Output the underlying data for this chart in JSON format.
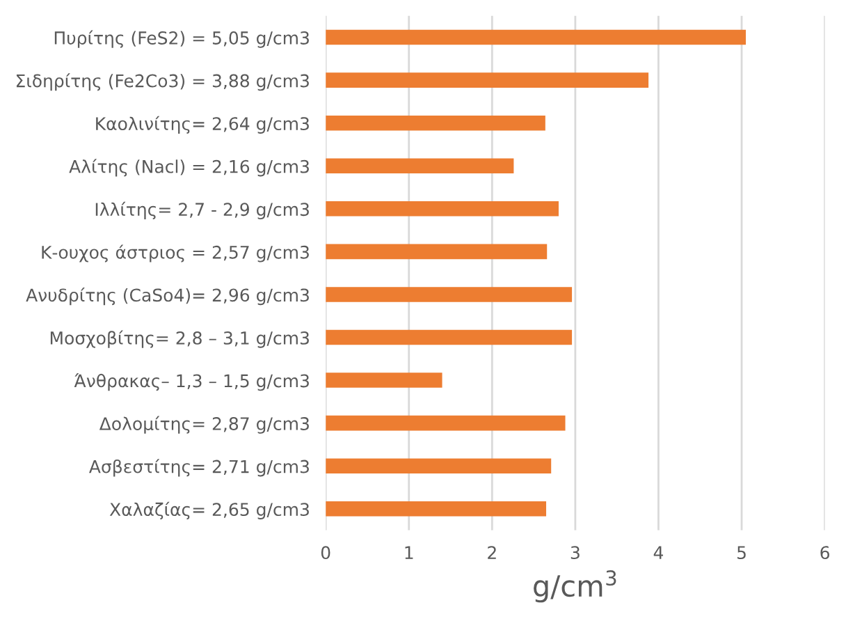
{
  "chart_data": {
    "type": "bar",
    "orientation": "horizontal",
    "xlabel": "g/cm$^{3}$",
    "categories": [
      "Πυρίτης (FeS2) = 5,05 g/cm3",
      "Σιδηρίτης (Fe2Co3) = 3,88 g/cm3",
      "Καολινίτης= 2,64 g/cm3",
      "Αλίτης (Nacl) = 2,16 g/cm3",
      "Ιλλίτης= 2,7 - 2,9 g/cm3",
      "Κ-ουχος άστριος = 2,57 g/cm3",
      "Ανυδρίτης (CaSo4)= 2,96 g/cm3",
      "Μοσχοβίτης= 2,8 – 3,1 g/cm3",
      "Άνθρακας– 1,3 – 1,5 g/cm3",
      "Δολομίτης= 2,87 g/cm3",
      "Ασβεστίτης= 2,71 g/cm3",
      "Χαλαζίας= 2,65 g/cm3"
    ],
    "values": [
      5.05,
      3.88,
      2.64,
      2.26,
      2.8,
      2.66,
      2.96,
      2.96,
      1.4,
      2.88,
      2.71,
      2.65
    ],
    "color": "#ed7d31",
    "xlim": [
      0,
      6
    ],
    "xticks": [
      0,
      1,
      2,
      3,
      4,
      5,
      6
    ],
    "grid": "x",
    "legend": false
  }
}
